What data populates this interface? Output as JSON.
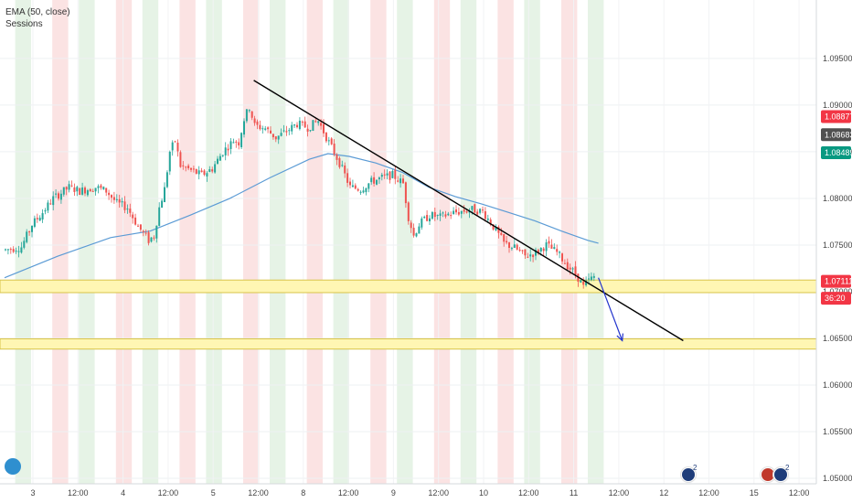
{
  "legend": {
    "indicator_1": "EMA (50, close)",
    "indicator_2": "Sessions"
  },
  "colors": {
    "up": "#26a69a",
    "down": "#ef5350",
    "ema": "#5b9bd5",
    "session_green": "#e6f3e6",
    "session_red": "#fbe3e3",
    "zone_fill": "#fff6b3",
    "zone_border": "#d8c44a",
    "trendline": "#000000",
    "arrow": "#2233cc",
    "badge_red": "#f23645",
    "badge_dark": "#505050",
    "badge_green": "#089981"
  },
  "chart_data": {
    "type": "candlestick",
    "symbol": "EURUSD",
    "ylim": [
      1.05,
      1.0995
    ],
    "y_ticks": [
      "1.09500",
      "1.09000",
      "1.08500",
      "1.08000",
      "1.07500",
      "1.07000",
      "1.06500",
      "1.06000",
      "1.05500",
      "1.05000"
    ],
    "x_tick_labels": [
      "3",
      "12:00",
      "4",
      "12:00",
      "5",
      "12:00",
      "8",
      "12:00",
      "9",
      "12:00",
      "10",
      "12:00",
      "11",
      "12:00",
      "12",
      "12:00",
      "15",
      "12:00"
    ],
    "price_badges": [
      {
        "label": "1.08877",
        "value": 1.08877,
        "role": "red"
      },
      {
        "label": "1.08683",
        "value": 1.08683,
        "role": "dark"
      },
      {
        "label": "1.08489",
        "value": 1.08489,
        "role": "green"
      },
      {
        "label": "1.07111",
        "value": 1.07111,
        "role": "red"
      },
      {
        "label": "36:20",
        "value": 1.0693,
        "role": "red"
      }
    ],
    "close_path": [
      [
        0,
        1.0745
      ],
      [
        6,
        1.0748
      ],
      [
        10,
        1.0772
      ],
      [
        14,
        1.0785
      ],
      [
        18,
        1.08
      ],
      [
        24,
        1.0812
      ],
      [
        28,
        1.0808
      ],
      [
        34,
        1.0812
      ],
      [
        38,
        1.0808
      ],
      [
        42,
        1.0795
      ],
      [
        46,
        1.079
      ],
      [
        50,
        1.077
      ],
      [
        54,
        1.0755
      ],
      [
        56,
        1.076
      ],
      [
        58,
        1.079
      ],
      [
        60,
        1.081
      ],
      [
        62,
        1.085
      ],
      [
        64,
        1.0862
      ],
      [
        66,
        1.0835
      ],
      [
        70,
        1.083
      ],
      [
        74,
        1.0825
      ],
      [
        78,
        1.0832
      ],
      [
        82,
        1.085
      ],
      [
        86,
        1.0862
      ],
      [
        88,
        1.086
      ],
      [
        90,
        1.0885
      ],
      [
        92,
        1.0898
      ],
      [
        94,
        1.0878
      ],
      [
        98,
        1.0875
      ],
      [
        102,
        1.0865
      ],
      [
        106,
        1.0872
      ],
      [
        110,
        1.088
      ],
      [
        114,
        1.0876
      ],
      [
        118,
        1.0883
      ],
      [
        122,
        1.086
      ],
      [
        126,
        1.0838
      ],
      [
        130,
        1.0812
      ],
      [
        134,
        1.081
      ],
      [
        138,
        1.0818
      ],
      [
        142,
        1.0822
      ],
      [
        146,
        1.0825
      ],
      [
        150,
        1.0816
      ],
      [
        152,
        1.078
      ],
      [
        154,
        1.076
      ],
      [
        156,
        1.0772
      ],
      [
        160,
        1.0782
      ],
      [
        164,
        1.078
      ],
      [
        168,
        1.0784
      ],
      [
        172,
        1.0786
      ],
      [
        176,
        1.0788
      ],
      [
        180,
        1.0786
      ],
      [
        184,
        1.077
      ],
      [
        188,
        1.0752
      ],
      [
        192,
        1.0747
      ],
      [
        196,
        1.0738
      ],
      [
        200,
        1.0742
      ],
      [
        204,
        1.075
      ],
      [
        208,
        1.0742
      ],
      [
        212,
        1.0728
      ],
      [
        214,
        1.0722
      ],
      [
        216,
        1.0715
      ],
      [
        218,
        1.0705
      ],
      [
        220,
        1.0712
      ],
      [
        222,
        1.0716
      ]
    ],
    "ema_path": [
      [
        0,
        1.0715
      ],
      [
        20,
        1.0738
      ],
      [
        40,
        1.0758
      ],
      [
        55,
        1.0765
      ],
      [
        70,
        1.0782
      ],
      [
        85,
        1.08
      ],
      [
        100,
        1.0822
      ],
      [
        115,
        1.0842
      ],
      [
        122,
        1.0848
      ],
      [
        130,
        1.0845
      ],
      [
        140,
        1.0838
      ],
      [
        150,
        1.0828
      ],
      [
        160,
        1.0812
      ],
      [
        170,
        1.0802
      ],
      [
        180,
        1.0794
      ],
      [
        190,
        1.0785
      ],
      [
        200,
        1.0776
      ],
      [
        210,
        1.0765
      ],
      [
        220,
        1.0755
      ],
      [
        224,
        1.0752
      ]
    ],
    "sessions": [
      {
        "start": 4,
        "end": 10,
        "kind": "green"
      },
      {
        "start": 18,
        "end": 24,
        "kind": "red"
      },
      {
        "start": 28,
        "end": 34,
        "kind": "green"
      },
      {
        "start": 42,
        "end": 48,
        "kind": "red"
      },
      {
        "start": 52,
        "end": 58,
        "kind": "green"
      },
      {
        "start": 66,
        "end": 72,
        "kind": "red"
      },
      {
        "start": 76,
        "end": 82,
        "kind": "green"
      },
      {
        "start": 90,
        "end": 96,
        "kind": "red"
      },
      {
        "start": 100,
        "end": 106,
        "kind": "green"
      },
      {
        "start": 114,
        "end": 120,
        "kind": "red"
      },
      {
        "start": 124,
        "end": 130,
        "kind": "green"
      },
      {
        "start": 138,
        "end": 144,
        "kind": "red"
      },
      {
        "start": 148,
        "end": 154,
        "kind": "green"
      },
      {
        "start": 162,
        "end": 168,
        "kind": "red"
      },
      {
        "start": 172,
        "end": 178,
        "kind": "green"
      },
      {
        "start": 186,
        "end": 192,
        "kind": "red"
      },
      {
        "start": 196,
        "end": 202,
        "kind": "green"
      },
      {
        "start": 210,
        "end": 216,
        "kind": "red"
      },
      {
        "start": 220,
        "end": 226,
        "kind": "green"
      }
    ],
    "zones": [
      {
        "top": 1.07125,
        "bottom": 1.0699
      },
      {
        "top": 1.06495,
        "bottom": 1.06385
      }
    ],
    "trendline": {
      "x1": 94,
      "y1": 1.09265,
      "x2": 256,
      "y2": 1.06475
    },
    "projection_arrow": {
      "x1": 224,
      "y1": 1.0715,
      "x2": 233,
      "y2": 1.06475
    },
    "events": [
      {
        "label": "2"
      },
      {
        "label": "2"
      },
      {
        "label": "2"
      }
    ]
  }
}
